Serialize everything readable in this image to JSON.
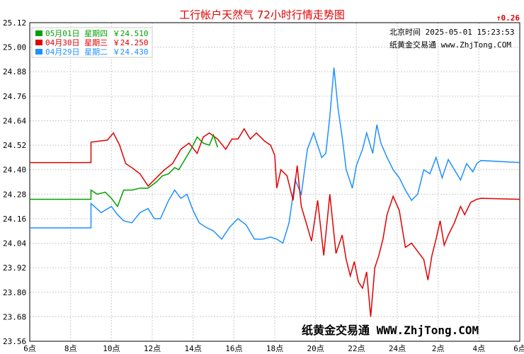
{
  "chart_data": {
    "type": "line",
    "title": "工行帐户天然气 72小时行情走势图",
    "change_label": "↑0.26",
    "info_time": "北京时间 2025-05-01 15:23:53",
    "info_site": "纸黄金交易通 www.ZhjTong.COM",
    "watermark": "纸黄金交易通 WWW.ZhjTong.COM",
    "ylim": [
      23.56,
      25.12
    ],
    "y_ticks": [
      "25.12",
      "25.00",
      "24.88",
      "24.76",
      "24.64",
      "24.52",
      "24.40",
      "24.28",
      "24.16",
      "24.04",
      "23.92",
      "23.80",
      "23.68",
      "23.56"
    ],
    "x_ticks": [
      "6点",
      "8点",
      "10点",
      "12点",
      "14点",
      "16点",
      "18点",
      "20点",
      "22点",
      "24点",
      "2点",
      "4点",
      "6点"
    ],
    "xlim": [
      6,
      30
    ],
    "series": [
      {
        "name": "05月01日 星期四 ￥24.510",
        "color": "#00a000",
        "points": [
          [
            6,
            24.255
          ],
          [
            9,
            24.255
          ],
          [
            9,
            24.3
          ],
          [
            9.3,
            24.28
          ],
          [
            9.7,
            24.29
          ],
          [
            10,
            24.26
          ],
          [
            10.3,
            24.22
          ],
          [
            10.6,
            24.3
          ],
          [
            11,
            24.3
          ],
          [
            11.4,
            24.31
          ],
          [
            11.8,
            24.31
          ],
          [
            12.2,
            24.34
          ],
          [
            12.5,
            24.37
          ],
          [
            12.8,
            24.38
          ],
          [
            13.1,
            24.41
          ],
          [
            13.3,
            24.4
          ],
          [
            13.6,
            24.45
          ],
          [
            13.9,
            24.5
          ],
          [
            14.2,
            24.56
          ],
          [
            14.5,
            24.53
          ],
          [
            14.8,
            24.52
          ],
          [
            15.0,
            24.57
          ],
          [
            15.2,
            24.51
          ]
        ]
      },
      {
        "name": "04月30日 星期三 ￥24.250",
        "color": "#e00000",
        "points": [
          [
            6,
            24.435
          ],
          [
            9,
            24.435
          ],
          [
            9,
            24.535
          ],
          [
            9.8,
            24.545
          ],
          [
            10.1,
            24.58
          ],
          [
            10.4,
            24.52
          ],
          [
            10.7,
            24.43
          ],
          [
            11.0,
            24.41
          ],
          [
            11.4,
            24.38
          ],
          [
            11.8,
            24.32
          ],
          [
            12.2,
            24.36
          ],
          [
            12.6,
            24.4
          ],
          [
            13.0,
            24.43
          ],
          [
            13.4,
            24.5
          ],
          [
            13.8,
            24.53
          ],
          [
            14.2,
            24.48
          ],
          [
            14.5,
            24.56
          ],
          [
            14.8,
            24.58
          ],
          [
            15.2,
            24.55
          ],
          [
            15.6,
            24.5
          ],
          [
            15.9,
            24.55
          ],
          [
            16.2,
            24.55
          ],
          [
            16.5,
            24.6
          ],
          [
            16.8,
            24.55
          ],
          [
            17.1,
            24.58
          ],
          [
            17.5,
            24.54
          ],
          [
            17.8,
            24.52
          ],
          [
            18.0,
            24.47
          ],
          [
            18.1,
            24.31
          ],
          [
            18.3,
            24.4
          ],
          [
            18.6,
            24.37
          ],
          [
            18.9,
            24.25
          ],
          [
            19.1,
            24.42
          ],
          [
            19.3,
            24.22
          ],
          [
            19.6,
            24.12
          ],
          [
            19.8,
            24.05
          ],
          [
            20.1,
            24.25
          ],
          [
            20.4,
            23.98
          ],
          [
            20.7,
            24.28
          ],
          [
            21.0,
            23.99
          ],
          [
            21.3,
            24.08
          ],
          [
            21.5,
            23.96
          ],
          [
            21.7,
            23.88
          ],
          [
            21.9,
            23.95
          ],
          [
            22.1,
            23.85
          ],
          [
            22.3,
            23.82
          ],
          [
            22.5,
            23.9
          ],
          [
            22.7,
            23.68
          ],
          [
            22.9,
            23.92
          ],
          [
            23.1,
            23.98
          ],
          [
            23.3,
            24.06
          ],
          [
            23.5,
            24.18
          ],
          [
            23.8,
            24.27
          ],
          [
            24.1,
            24.2
          ],
          [
            24.4,
            24.02
          ],
          [
            24.7,
            24.04
          ],
          [
            25.0,
            24.0
          ],
          [
            25.3,
            23.96
          ],
          [
            25.5,
            23.86
          ],
          [
            25.7,
            23.98
          ],
          [
            25.9,
            24.06
          ],
          [
            26.1,
            24.15
          ],
          [
            26.3,
            24.03
          ],
          [
            26.5,
            24.08
          ],
          [
            26.8,
            24.14
          ],
          [
            27.1,
            24.22
          ],
          [
            27.3,
            24.18
          ],
          [
            27.6,
            24.24
          ],
          [
            27.9,
            24.255
          ],
          [
            28.1,
            24.26
          ],
          [
            30,
            24.255
          ]
        ]
      },
      {
        "name": "04月29日 星期二 ￥24.430",
        "color": "#1e90ff",
        "points": [
          [
            6,
            24.115
          ],
          [
            9,
            24.115
          ],
          [
            9,
            24.235
          ],
          [
            9.5,
            24.19
          ],
          [
            10,
            24.22
          ],
          [
            10.3,
            24.18
          ],
          [
            10.6,
            24.15
          ],
          [
            11,
            24.14
          ],
          [
            11.4,
            24.19
          ],
          [
            11.8,
            24.21
          ],
          [
            12.1,
            24.16
          ],
          [
            12.4,
            24.16
          ],
          [
            12.8,
            24.25
          ],
          [
            13.1,
            24.3
          ],
          [
            13.4,
            24.26
          ],
          [
            13.7,
            24.28
          ],
          [
            14.0,
            24.2
          ],
          [
            14.3,
            24.14
          ],
          [
            14.6,
            24.12
          ],
          [
            15.0,
            24.1
          ],
          [
            15.4,
            24.06
          ],
          [
            15.8,
            24.12
          ],
          [
            16.2,
            24.16
          ],
          [
            16.6,
            24.13
          ],
          [
            17.0,
            24.06
          ],
          [
            17.4,
            24.06
          ],
          [
            17.8,
            24.07
          ],
          [
            18.1,
            24.06
          ],
          [
            18.4,
            24.04
          ],
          [
            18.7,
            24.14
          ],
          [
            19.0,
            24.35
          ],
          [
            19.3,
            24.28
          ],
          [
            19.6,
            24.5
          ],
          [
            19.9,
            24.58
          ],
          [
            20.1,
            24.52
          ],
          [
            20.3,
            24.46
          ],
          [
            20.5,
            24.48
          ],
          [
            20.7,
            24.66
          ],
          [
            20.9,
            24.9
          ],
          [
            21.1,
            24.7
          ],
          [
            21.3,
            24.56
          ],
          [
            21.5,
            24.4
          ],
          [
            21.8,
            24.31
          ],
          [
            22.0,
            24.42
          ],
          [
            22.3,
            24.5
          ],
          [
            22.5,
            24.58
          ],
          [
            22.8,
            24.48
          ],
          [
            23.0,
            24.62
          ],
          [
            23.2,
            24.53
          ],
          [
            23.5,
            24.46
          ],
          [
            23.8,
            24.4
          ],
          [
            24.1,
            24.36
          ],
          [
            24.4,
            24.3
          ],
          [
            24.7,
            24.25
          ],
          [
            25.0,
            24.28
          ],
          [
            25.3,
            24.4
          ],
          [
            25.6,
            24.38
          ],
          [
            25.9,
            24.46
          ],
          [
            26.2,
            24.36
          ],
          [
            26.5,
            24.45
          ],
          [
            26.8,
            24.4
          ],
          [
            27.1,
            24.35
          ],
          [
            27.4,
            24.43
          ],
          [
            27.7,
            24.39
          ],
          [
            27.9,
            24.43
          ],
          [
            28.1,
            24.445
          ],
          [
            30,
            24.435
          ]
        ]
      }
    ]
  }
}
